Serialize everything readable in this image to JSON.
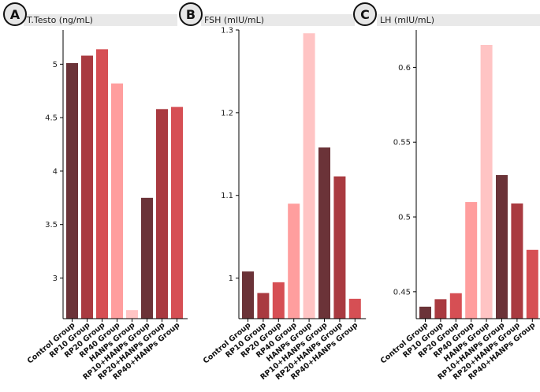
{
  "colors": {
    "dark": "#6b3338",
    "red_dark": "#a93a40",
    "red": "#d64f54",
    "pink": "#ff9e9e",
    "light_pink": "#ffc4c4",
    "title_band": "#e9e9e9"
  },
  "chart_data": [
    {
      "type": "bar",
      "panel_label": "A",
      "title": "T.Testo (ng/mL)",
      "categories": [
        "Control Group",
        "RP10 Group",
        "RP20 Group",
        "RP40 Group",
        "HANPs Group",
        "RP10+HANPs Group",
        "RP20+HANPs Group",
        "RP40+HANPs Group"
      ],
      "values": [
        5.01,
        5.08,
        5.14,
        4.82,
        2.7,
        3.75,
        4.58,
        4.6
      ],
      "bar_colors": [
        "dark",
        "red_dark",
        "red",
        "pink",
        "light_pink",
        "dark",
        "red_dark",
        "red"
      ],
      "ylim": [
        2.62,
        5.32
      ],
      "yticks": [
        3,
        3.5,
        4,
        4.5,
        5
      ],
      "ytick_labels": [
        "3",
        "3.5",
        "4",
        "4.5",
        "5"
      ]
    },
    {
      "type": "bar",
      "panel_label": "B",
      "title": "FSH (mIU/mL)",
      "categories": [
        "Control Group",
        "RP10 Group",
        "RP20 Group",
        "RP40 Group",
        "HANPs Group",
        "RP10+HANPs Group",
        "RP20+HANPs Group",
        "RP40+HANPs Group"
      ],
      "values": [
        1.008,
        0.982,
        0.995,
        1.09,
        1.296,
        1.158,
        1.123,
        0.975
      ],
      "bar_colors": [
        "dark",
        "red_dark",
        "red",
        "pink",
        "light_pink",
        "dark",
        "red_dark",
        "red"
      ],
      "ylim": [
        0.951,
        1.3
      ],
      "yticks": [
        1,
        1.1,
        1.2,
        1.3
      ],
      "ytick_labels": [
        "1",
        "1.1",
        "1.2",
        "1.3"
      ]
    },
    {
      "type": "bar",
      "panel_label": "C",
      "title": "LH (mIU/mL)",
      "categories": [
        "Control Group",
        "RP10 Group",
        "RP20 Group",
        "RP40 Group",
        "HANPs Group",
        "RP10+HANPs Group",
        "RP20+HANPs Group",
        "RP40+HANPs Group"
      ],
      "values": [
        0.44,
        0.445,
        0.449,
        0.51,
        0.615,
        0.528,
        0.509,
        0.478
      ],
      "bar_colors": [
        "dark",
        "red_dark",
        "red",
        "pink",
        "light_pink",
        "dark",
        "red_dark",
        "red"
      ],
      "ylim": [
        0.432,
        0.625
      ],
      "yticks": [
        0.45,
        0.5,
        0.55,
        0.6
      ],
      "ytick_labels": [
        "0.45",
        "0.5",
        "0.55",
        "0.6"
      ]
    }
  ]
}
